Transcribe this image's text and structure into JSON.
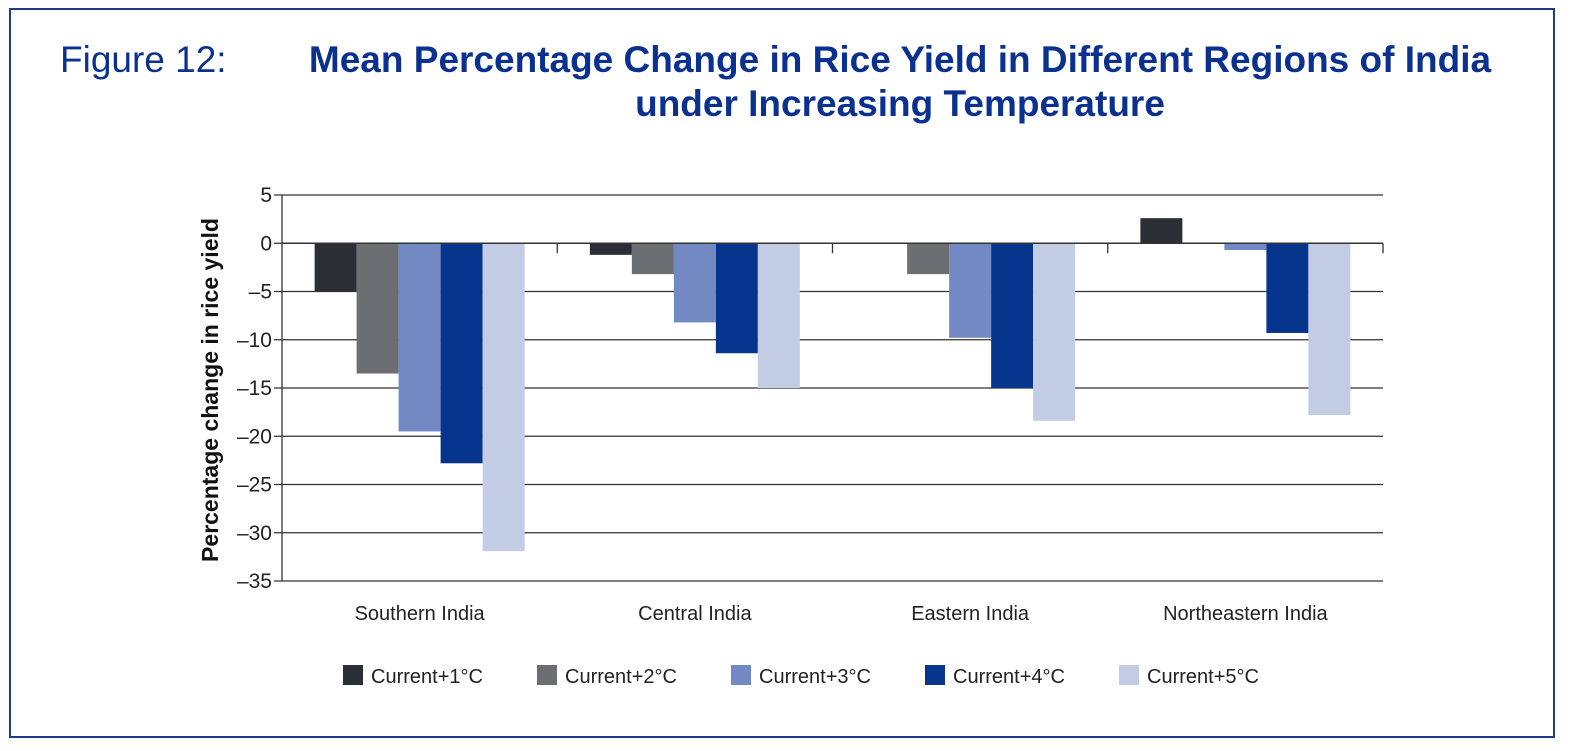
{
  "figure_label": "Figure 12:",
  "chart_data": {
    "type": "bar",
    "title": "Mean Percentage Change in Rice Yield in Different Regions of India under Increasing Temperature",
    "xlabel": "",
    "ylabel": "Percentage change in rice yield",
    "ylim": [
      -35,
      5
    ],
    "yticks": [
      5,
      0,
      -5,
      -10,
      -15,
      -20,
      -25,
      -30,
      -35
    ],
    "ytick_labels": [
      "5",
      "0",
      "–5",
      "–10",
      "–15",
      "–20",
      "–25",
      "–30",
      "–35"
    ],
    "grid": true,
    "legend_position": "bottom",
    "categories": [
      "Southern India",
      "Central India",
      "Eastern India",
      "Northeastern India"
    ],
    "series": [
      {
        "name": "Current+1°C",
        "color": "#2b2e35",
        "values": [
          -5.0,
          -1.2,
          0,
          2.6
        ]
      },
      {
        "name": "Current+2°C",
        "color": "#6d6e72",
        "values": [
          -13.5,
          -3.2,
          -3.2,
          0
        ]
      },
      {
        "name": "Current+3°C",
        "color": "#7289c4",
        "values": [
          -19.5,
          -8.2,
          -9.8,
          -0.7
        ]
      },
      {
        "name": "Current+4°C",
        "color": "#07358d",
        "values": [
          -22.8,
          -11.4,
          -15.0,
          -9.3
        ]
      },
      {
        "name": "Current+5°C",
        "color": "#c2cce5",
        "values": [
          -31.9,
          -15.0,
          -18.4,
          -17.8
        ]
      }
    ]
  }
}
